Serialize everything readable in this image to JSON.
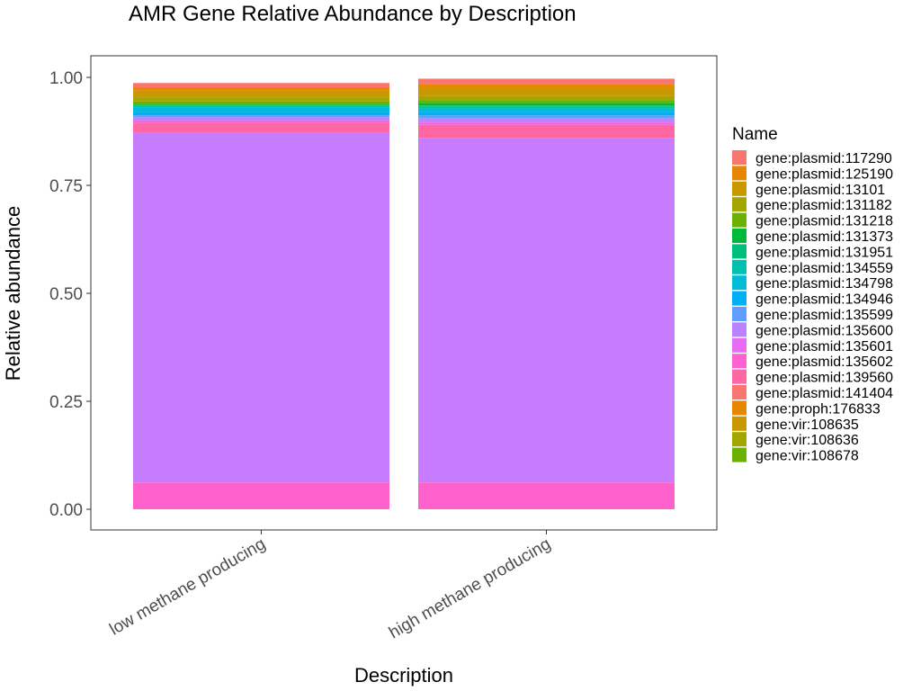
{
  "chart_data": {
    "type": "bar",
    "stacked": true,
    "title": "AMR Gene Relative Abundance by Description",
    "xlabel": "Description",
    "ylabel": "Relative abundance",
    "ylim": [
      0,
      1
    ],
    "yticks": [
      "0.00",
      "0.25",
      "0.50",
      "0.75",
      "1.00"
    ],
    "yticks_values": [
      0,
      0.25,
      0.5,
      0.75,
      1.0
    ],
    "grid": false,
    "legend_title": "Name",
    "legend_position": "right",
    "categories": [
      "low methane producing",
      "high methane producing"
    ],
    "series": [
      {
        "name": "gene:plasmid:117290",
        "color": "#F8766D",
        "values": [
          0.01,
          0.012
        ]
      },
      {
        "name": "gene:plasmid:125190",
        "color": "#E58700",
        "values": [
          0.008,
          0.01
        ]
      },
      {
        "name": "gene:plasmid:13101",
        "color": "#C99800",
        "values": [
          0.015,
          0.018
        ]
      },
      {
        "name": "gene:plasmid:131182",
        "color": "#A3A500",
        "values": [
          0.01,
          0.01
        ]
      },
      {
        "name": "gene:plasmid:131218",
        "color": "#6BB100",
        "values": [
          0.005,
          0.006
        ]
      },
      {
        "name": "gene:plasmid:131373",
        "color": "#00BA38",
        "values": [
          0.003,
          0.006
        ]
      },
      {
        "name": "gene:plasmid:131951",
        "color": "#00BF7D",
        "values": [
          0.002,
          0.003
        ]
      },
      {
        "name": "gene:plasmid:134559",
        "color": "#00C0AF",
        "values": [
          0.004,
          0.004
        ]
      },
      {
        "name": "gene:plasmid:134798",
        "color": "#00BCD8",
        "values": [
          0.01,
          0.008
        ]
      },
      {
        "name": "gene:plasmid:134946",
        "color": "#00B0F6",
        "values": [
          0.008,
          0.008
        ]
      },
      {
        "name": "gene:plasmid:135599",
        "color": "#619CFF",
        "values": [
          0.004,
          0.006
        ]
      },
      {
        "name": "gene:plasmid:135600",
        "color": "#B983FF",
        "values": [
          0.006,
          0.008
        ]
      },
      {
        "name": "gene:plasmid:135601",
        "color": "#E76BF3",
        "values": [
          0.004,
          0.004
        ]
      },
      {
        "name": "gene:plasmid:135602",
        "color": "#FD61D1",
        "values": [
          0.003,
          0.004
        ]
      },
      {
        "name": "gene:plasmid:139560",
        "color": "#FF67A4",
        "values": [
          0.023,
          0.03
        ]
      },
      {
        "name": "gene:plasmid:141404",
        "color": "#F8766D",
        "values": [
          0.81,
          0.798
        ]
      },
      {
        "name": "gene:proph:176833",
        "color": "#E58700",
        "values": [
          0.0,
          0.0
        ]
      },
      {
        "name": "gene:vir:108635",
        "color": "#C99800",
        "values": [
          0.06,
          0.06
        ]
      },
      {
        "name": "gene:vir:108636",
        "color": "#A3A500",
        "values": [
          0.0,
          0.0
        ]
      },
      {
        "name": "gene:vir:108678",
        "color": "#6BB100",
        "values": [
          0.002,
          0.002
        ]
      }
    ]
  }
}
